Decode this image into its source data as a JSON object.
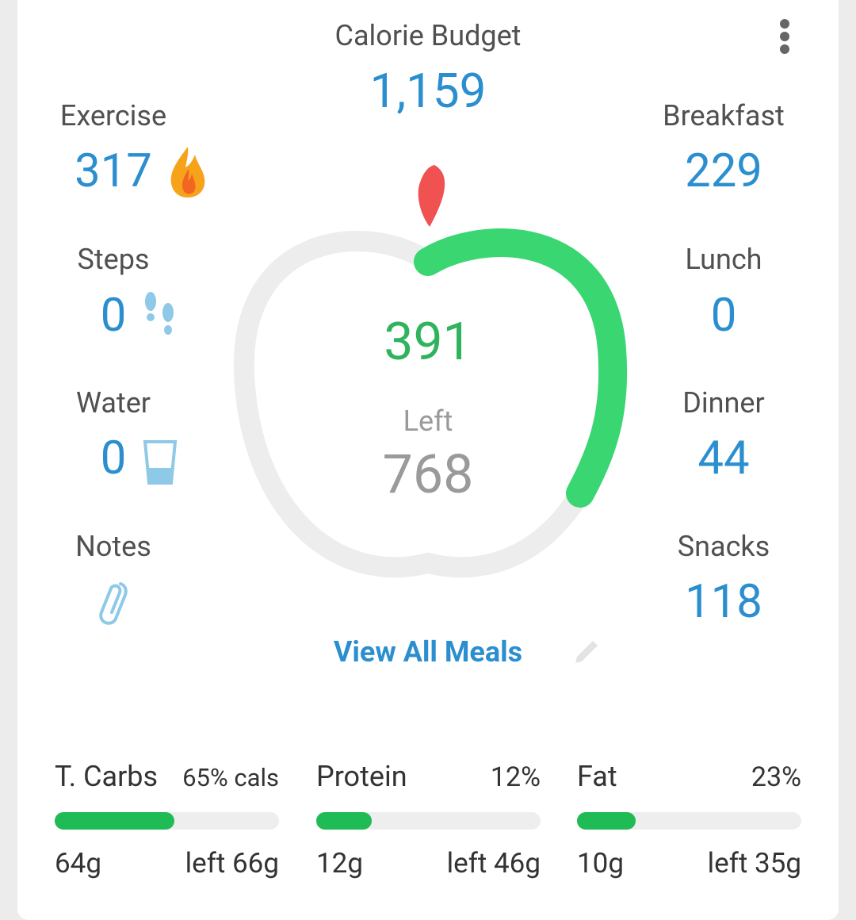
{
  "header": {
    "title": "Calorie Budget",
    "budget": "1,159"
  },
  "left_stats": [
    {
      "label": "Exercise",
      "value": "317"
    },
    {
      "label": "Steps",
      "value": "0"
    },
    {
      "label": "Water",
      "value": "0"
    },
    {
      "label": "Notes"
    }
  ],
  "meals": [
    {
      "label": "Breakfast",
      "value": "229"
    },
    {
      "label": "Lunch",
      "value": "0"
    },
    {
      "label": "Dinner",
      "value": "44"
    },
    {
      "label": "Snacks",
      "value": "118"
    }
  ],
  "center": {
    "eaten": "391",
    "left_label": "Left",
    "left_value": "768"
  },
  "view_all": "View All Meals",
  "macros": [
    {
      "name": "T. Carbs",
      "share": "65% cals",
      "eaten": "64g",
      "left": "left 66g"
    },
    {
      "name": "Protein",
      "share": "12%",
      "eaten": "12g",
      "left": "left 46g"
    },
    {
      "name": "Fat",
      "share": "23%",
      "eaten": "10g",
      "left": "left 35g"
    }
  ]
}
